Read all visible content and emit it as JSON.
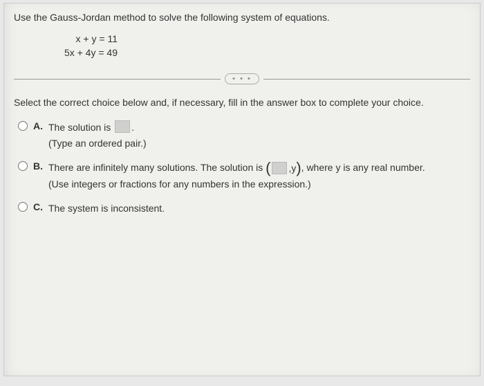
{
  "question": "Use the Gauss-Jordan method to solve the following system of equations.",
  "equations": {
    "eq1": "x + y = 11",
    "eq2": "5x + 4y = 49"
  },
  "dots": "• • •",
  "instruction": "Select the correct choice below and, if necessary, fill in the answer box to complete your choice.",
  "choices": {
    "a": {
      "letter": "A.",
      "text_before": "The solution is ",
      "text_after": ".",
      "hint": "(Type an ordered pair.)"
    },
    "b": {
      "letter": "B.",
      "text_before": "There are infinitely many solutions. The solution is ",
      "paren_mid": ",y",
      "text_after": ", where y is any real number.",
      "hint": "(Use integers or fractions for any numbers in the expression.)"
    },
    "c": {
      "letter": "C.",
      "text": "The system is inconsistent."
    }
  }
}
